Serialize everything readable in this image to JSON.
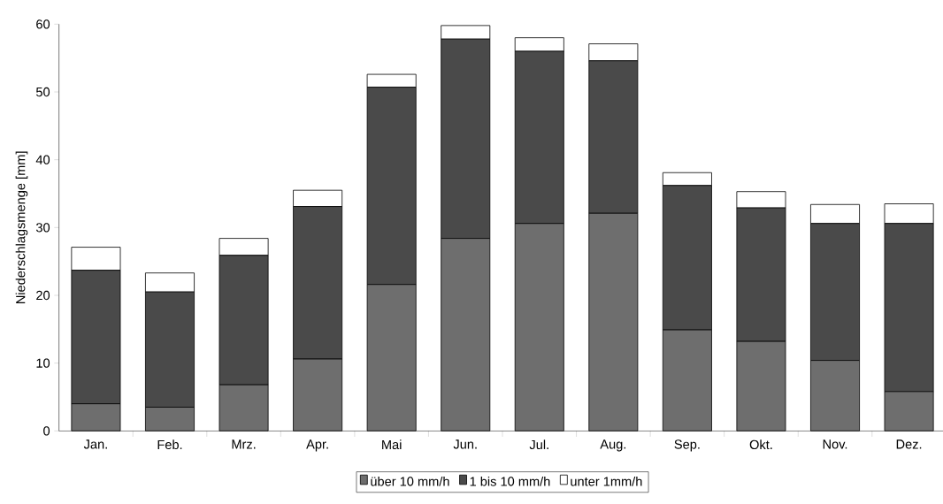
{
  "chart_data": {
    "type": "bar",
    "stacked": true,
    "ylabel": "Niederschlagsmenge [mm]",
    "categories": [
      "Jan.",
      "Feb.",
      "Mrz.",
      "Apr.",
      "Mai",
      "Jun.",
      "Jul.",
      "Aug.",
      "Sep.",
      "Okt.",
      "Nov.",
      "Dez."
    ],
    "series": [
      {
        "name": "über 10 mm/h",
        "color": "#6e6e6e",
        "values": [
          4.0,
          3.5,
          6.8,
          10.6,
          21.6,
          28.4,
          30.6,
          32.1,
          14.9,
          13.2,
          10.4,
          5.8
        ]
      },
      {
        "name": "1 bis 10 mm/h",
        "color": "#4a4a4a",
        "values": [
          19.7,
          17.0,
          19.1,
          22.5,
          29.1,
          29.4,
          25.4,
          22.5,
          21.3,
          19.7,
          20.2,
          24.8
        ]
      },
      {
        "name": "unter 1mm/h",
        "color": "#ffffff",
        "values": [
          3.4,
          2.8,
          2.5,
          2.4,
          1.9,
          2.0,
          2.0,
          2.5,
          1.9,
          2.4,
          2.8,
          2.9
        ]
      }
    ],
    "ylim": [
      0,
      60
    ],
    "yticks": [
      0,
      10,
      20,
      30,
      40,
      50,
      60
    ],
    "legend": "bottom",
    "grid": false
  }
}
